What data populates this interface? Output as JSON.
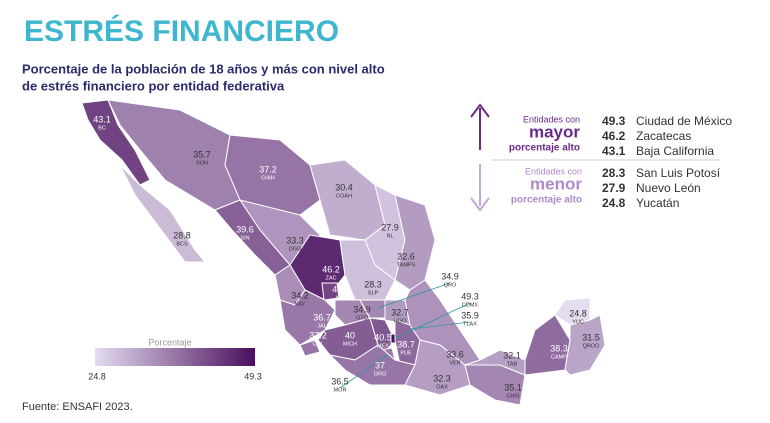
{
  "header": {
    "title": "ESTRÉS FINANCIERO",
    "subtitle_lines": [
      "Porcentaje de la población de 18 años y más con nivel alto",
      "de estrés financiero por entidad federativa"
    ]
  },
  "chart_data": {
    "type": "choropleth",
    "states": [
      "BC",
      "BCS",
      "SON",
      "CHIH",
      "COAH",
      "NL",
      "TAMPS",
      "SIN",
      "DGO",
      "ZAC",
      "SLP",
      "NAY",
      "AGS",
      "JAL",
      "COL",
      "GTO",
      "QRO",
      "HGO",
      "MICH",
      "MEX",
      "CDMX",
      "TLAX",
      "MOR",
      "PUE",
      "GRO",
      "VER",
      "OAX",
      "CHIS",
      "TAB",
      "CAMP",
      "YUC",
      "QROO"
    ],
    "values": [
      43.1,
      28.8,
      35.7,
      37.2,
      30.4,
      27.9,
      32.6,
      39.6,
      33.3,
      46.2,
      28.3,
      34.2,
      42.8,
      36.7,
      37.2,
      34.9,
      34.9,
      32.7,
      40.0,
      40.5,
      49.3,
      35.9,
      36.5,
      38.7,
      37.0,
      33.6,
      32.3,
      35.1,
      32.1,
      38.3,
      24.8,
      31.5
    ],
    "scale": {
      "title": "Porcentaje",
      "min": 24.8,
      "max": 49.3,
      "colors": [
        "#e4dcef",
        "#4a0f5e"
      ]
    }
  },
  "highlights": {
    "high": {
      "label_lines": [
        "Entidades con",
        "mayor",
        "porcentaje alto"
      ],
      "items": [
        {
          "value": 49.3,
          "name": "Ciudad de México"
        },
        {
          "value": 46.2,
          "name": "Zacatecas"
        },
        {
          "value": 43.1,
          "name": "Baja California"
        }
      ]
    },
    "low": {
      "label_lines": [
        "Entidades con",
        "menor",
        "porcentaje alto"
      ],
      "items": [
        {
          "value": 28.3,
          "name": "San Luis Potosí"
        },
        {
          "value": 27.9,
          "name": "Nuevo León"
        },
        {
          "value": 24.8,
          "name": "Yucatán"
        }
      ]
    }
  },
  "footer": {
    "source": "Fuente: ENSAFI 2023."
  }
}
